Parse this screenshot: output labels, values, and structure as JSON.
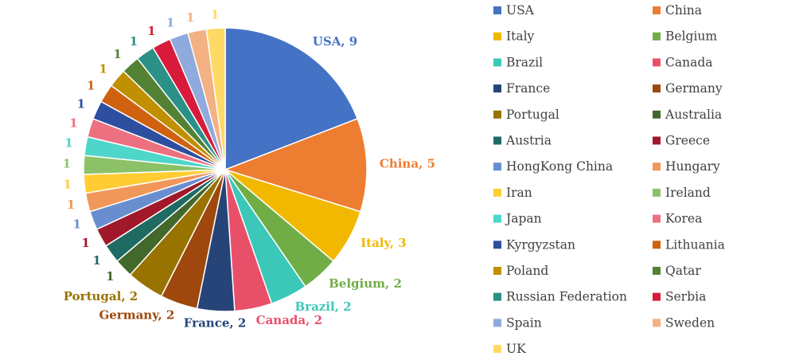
{
  "chart_data": {
    "type": "pie",
    "categories": [
      "USA",
      "China",
      "Italy",
      "Belgium",
      "Brazil",
      "Canada",
      "France",
      "Germany",
      "Portugal",
      "Australia",
      "Austria",
      "Greece",
      "HongKong China",
      "Hungary",
      "Iran",
      "Ireland",
      "Japan",
      "Korea",
      "Kyrgyzstan",
      "Lithuania",
      "Poland",
      "Qatar",
      "Russian Federation",
      "Serbia",
      "Spain",
      "Sweden",
      "UK"
    ],
    "values": [
      9,
      5,
      3,
      2,
      2,
      2,
      2,
      2,
      2,
      1,
      1,
      1,
      1,
      1,
      1,
      1,
      1,
      1,
      1,
      1,
      1,
      1,
      1,
      1,
      1,
      1,
      1
    ],
    "value_labels": [
      "USA, 9",
      "China, 5",
      "Italy, 3",
      "Belgium, 2",
      "Brazil, 2",
      "Canada, 2",
      "France, 2",
      "Germany, 2",
      "Portugal, 2",
      "1",
      "1",
      "1",
      "1",
      "1",
      "1",
      "1",
      "1",
      "1",
      "1",
      "1",
      "1",
      "1",
      "1",
      "1",
      "1",
      "1",
      "1"
    ],
    "colors": [
      "#4472C4",
      "#ED7D31",
      "#F2B800",
      "#70AD47",
      "#3CC8B8",
      "#E8506A",
      "#264478",
      "#9E480E",
      "#997300",
      "#43682B",
      "#1F6B63",
      "#A0182A",
      "#698ED0",
      "#F1975A",
      "#FFCD33",
      "#8CC168",
      "#4DD6C9",
      "#EC7080",
      "#2E4FA0",
      "#D0620F",
      "#C09000",
      "#548235",
      "#2A9088",
      "#D81B3B",
      "#8FAADC",
      "#F4B183",
      "#FFD966"
    ],
    "legend": "right"
  }
}
